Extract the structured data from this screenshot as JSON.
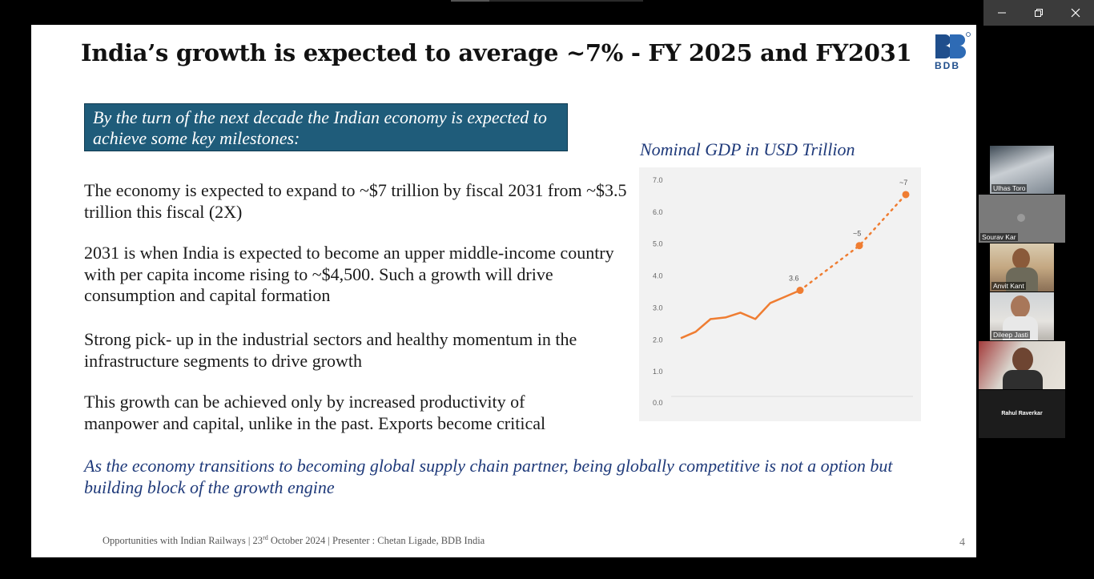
{
  "window": {
    "controls": [
      "minimize-icon",
      "restore-icon",
      "close-icon"
    ]
  },
  "slide": {
    "title": "India’s growth is expected to average ~7% - FY 2025 and FY2031",
    "logo_text": "BDB",
    "callout": "By the turn of the next decade the Indian economy is expected to achieve some key milestones:",
    "bullets": [
      "The economy is expected to expand to ~$7 trillion by fiscal 2031 from ~$3.5 trillion this fiscal (2X)",
      "2031 is when India is expected to become an upper middle-income country with per capita income rising to ~$4,500. Such a growth will drive consumption and capital formation",
      "Strong pick- up in the industrial sectors and healthy momentum in the infrastructure segments to drive growth",
      "This growth can be achieved only by increased productivity of manpower and capital, unlike in the past. Exports become critical"
    ],
    "closing": "As the economy transitions to becoming global supply chain partner, being globally competitive is not a option but building block of the growth engine",
    "chart_title": "Nominal GDP in USD Trillion",
    "footer": {
      "part1": "Opportunities with Indian Railways  | 23",
      "sup": "rd",
      "part2": " October 2024 | Presenter : Chetan Ligade, BDB India"
    },
    "page_number": "4",
    "colors": {
      "accent": "#ef7d32",
      "callout_bg": "#1f5c7a",
      "title_blue": "#1f3a7a"
    }
  },
  "chart_data": {
    "type": "line",
    "title": "Nominal GDP in USD Trillion",
    "ylim": [
      0,
      7
    ],
    "y_ticks": [
      "0.0",
      "1.0",
      "2.0",
      "3.0",
      "4.0",
      "5.0",
      "6.0",
      "7.0"
    ],
    "grid": false,
    "series": [
      {
        "style": "solid",
        "values": [
          2.1,
          2.3,
          2.7,
          2.75,
          2.9,
          2.7,
          3.2,
          3.4,
          3.6
        ]
      },
      {
        "style": "dotted",
        "values": [
          3.6,
          5.0,
          6.6
        ]
      }
    ],
    "data_labels": [
      {
        "value": 3.6,
        "text": "3.6"
      },
      {
        "value": 5.0,
        "text": "~5"
      },
      {
        "value": 6.6,
        "text": "~7"
      }
    ]
  },
  "participants": [
    {
      "name": "Ulhas Toro",
      "avatar": "avatar"
    },
    {
      "name": "Sourav Kar",
      "avatar": "avatar"
    },
    {
      "name": "Anvit Kant",
      "avatar": "avatar"
    },
    {
      "name": "Dileep Jasti",
      "avatar": "avatar"
    },
    {
      "name": "",
      "avatar": "avatar"
    },
    {
      "name": "Rahul Raverkar",
      "avatar": ""
    }
  ]
}
